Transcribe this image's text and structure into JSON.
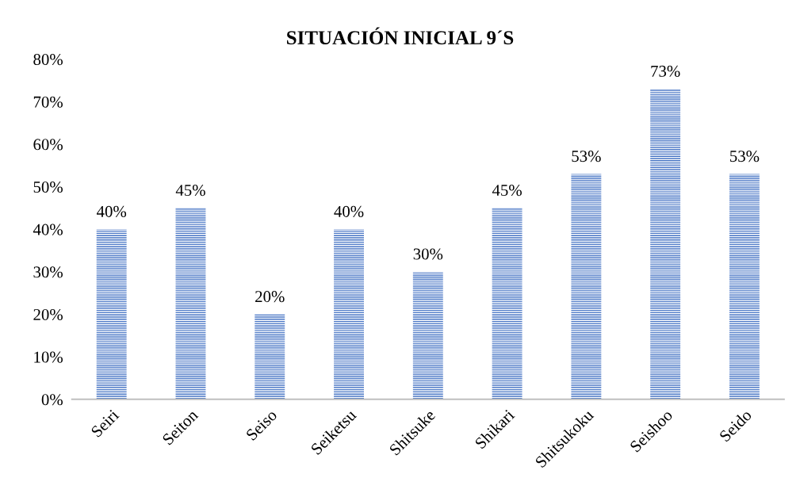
{
  "chart_data": {
    "type": "bar",
    "title": "SITUACIÓN INICIAL 9´S",
    "categories": [
      "Seiri",
      "Seiton",
      "Seiso",
      "Seiketsu",
      "Shitsuke",
      "Shikari",
      "Shitsukoku",
      "Seishoo",
      "Seido"
    ],
    "values": [
      40,
      45,
      20,
      40,
      30,
      45,
      53,
      73,
      53
    ],
    "value_labels": [
      "40%",
      "45%",
      "20%",
      "40%",
      "30%",
      "45%",
      "53%",
      "73%",
      "53%"
    ],
    "color": "#4472c4",
    "ylim": [
      0,
      80
    ],
    "yticks": [
      {
        "value": 0,
        "label": "0%"
      },
      {
        "value": 10,
        "label": "10%"
      },
      {
        "value": 20,
        "label": "20%"
      },
      {
        "value": 30,
        "label": "30%"
      },
      {
        "value": 40,
        "label": "40%"
      },
      {
        "value": 50,
        "label": "50%"
      },
      {
        "value": 60,
        "label": "60%"
      },
      {
        "value": 70,
        "label": "70%"
      },
      {
        "value": 80,
        "label": "80%"
      }
    ],
    "grid": false,
    "legend": false
  }
}
